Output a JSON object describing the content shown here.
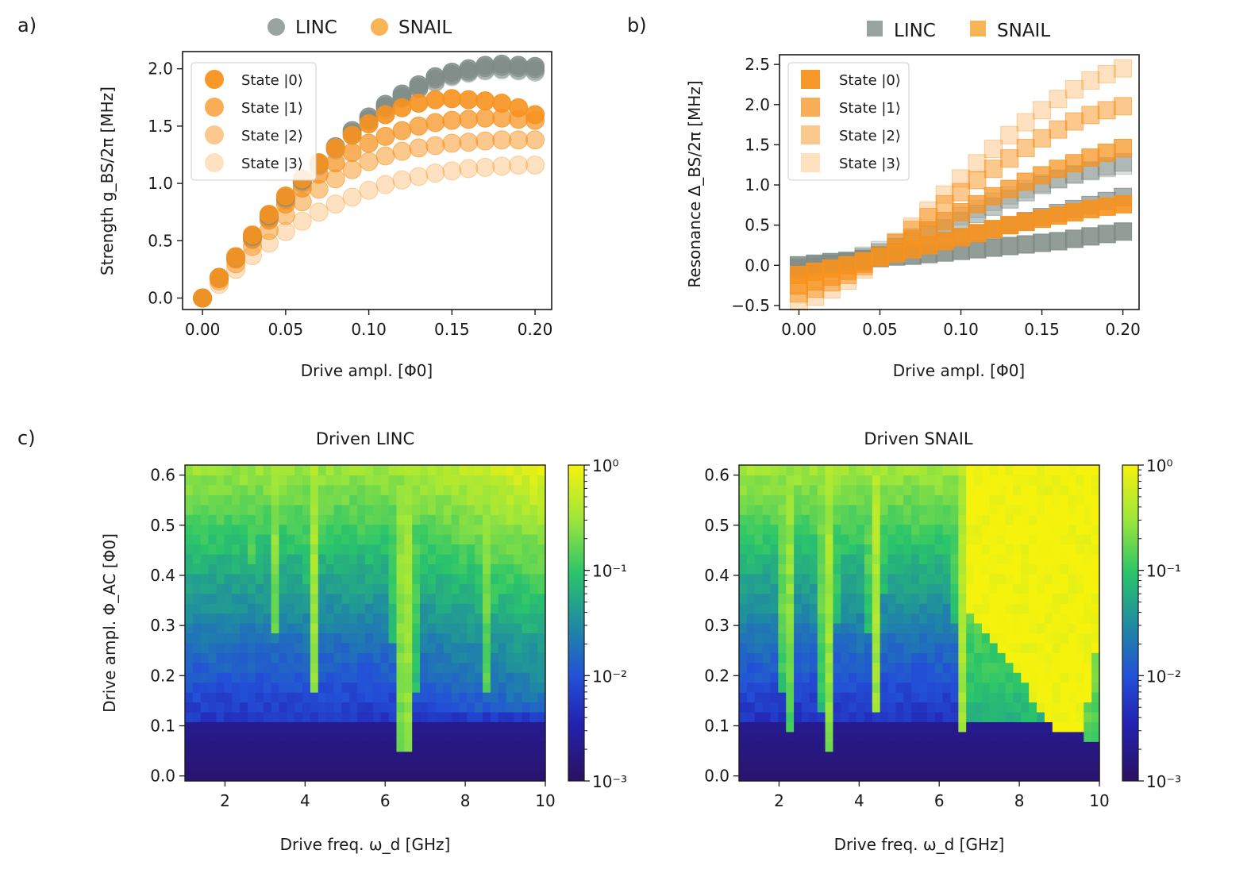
{
  "chart_data": [
    {
      "id": "a",
      "type": "scatter",
      "panel_label": "a)",
      "xlabel": "Drive ampl. [Φ0]",
      "ylabel": "Strength g_BS/2π [MHz]",
      "xlim": [
        -0.012,
        0.21
      ],
      "ylim": [
        -0.1,
        2.15
      ],
      "xticks": [
        "0.00",
        "0.05",
        "0.10",
        "0.15",
        "0.20"
      ],
      "yticks": [
        "0.0",
        "0.5",
        "1.0",
        "1.5",
        "2.0"
      ],
      "marker": "circle",
      "top_legend": [
        "LINC",
        "SNAIL"
      ],
      "inner_legend": [
        "State |0⟩",
        "State |1⟩",
        "State |2⟩",
        "State |3⟩"
      ],
      "x": [
        0,
        0.01,
        0.02,
        0.03,
        0.04,
        0.05,
        0.06,
        0.07,
        0.08,
        0.09,
        0.1,
        0.11,
        0.12,
        0.13,
        0.14,
        0.15,
        0.16,
        0.17,
        0.18,
        0.19,
        0.2
      ],
      "series": [
        {
          "name": "LINC State |0⟩",
          "device": "LINC",
          "state": 0,
          "values": [
            0,
            0.18,
            0.36,
            0.54,
            0.72,
            0.88,
            1.03,
            1.18,
            1.32,
            1.46,
            1.58,
            1.69,
            1.78,
            1.86,
            1.93,
            1.97,
            2.0,
            2.03,
            2.04,
            2.03,
            2.02
          ]
        },
        {
          "name": "LINC State |1⟩",
          "device": "LINC",
          "state": 1,
          "values": [
            0,
            0.18,
            0.35,
            0.53,
            0.71,
            0.87,
            1.02,
            1.17,
            1.31,
            1.44,
            1.56,
            1.67,
            1.76,
            1.84,
            1.91,
            1.95,
            1.98,
            2.01,
            2.02,
            2.01,
            2.0
          ]
        },
        {
          "name": "LINC State |2⟩",
          "device": "LINC",
          "state": 2,
          "values": [
            0,
            0.17,
            0.35,
            0.52,
            0.7,
            0.86,
            1.01,
            1.16,
            1.3,
            1.43,
            1.55,
            1.66,
            1.75,
            1.83,
            1.89,
            1.94,
            1.97,
            1.99,
            2.0,
            1.99,
            1.98
          ]
        },
        {
          "name": "LINC State |3⟩",
          "device": "LINC",
          "state": 3,
          "values": [
            0,
            0.17,
            0.34,
            0.52,
            0.69,
            0.85,
            1.0,
            1.15,
            1.29,
            1.42,
            1.54,
            1.64,
            1.74,
            1.82,
            1.88,
            1.93,
            1.96,
            1.98,
            1.99,
            1.98,
            1.97
          ]
        },
        {
          "name": "SNAIL State |0⟩",
          "device": "SNAIL",
          "state": 0,
          "values": [
            0,
            0.18,
            0.36,
            0.55,
            0.73,
            0.89,
            1.04,
            1.18,
            1.31,
            1.42,
            1.52,
            1.6,
            1.66,
            1.7,
            1.73,
            1.74,
            1.73,
            1.72,
            1.7,
            1.66,
            1.6
          ]
        },
        {
          "name": "SNAIL State |1⟩",
          "device": "SNAIL",
          "state": 1,
          "values": [
            0,
            0.17,
            0.34,
            0.51,
            0.68,
            0.82,
            0.96,
            1.08,
            1.18,
            1.27,
            1.35,
            1.41,
            1.46,
            1.5,
            1.53,
            1.55,
            1.56,
            1.57,
            1.57,
            1.56,
            1.55
          ]
        },
        {
          "name": "SNAIL State |2⟩",
          "device": "SNAIL",
          "state": 2,
          "values": [
            0,
            0.15,
            0.3,
            0.45,
            0.59,
            0.72,
            0.84,
            0.95,
            1.04,
            1.12,
            1.19,
            1.24,
            1.28,
            1.31,
            1.33,
            1.35,
            1.36,
            1.37,
            1.38,
            1.38,
            1.38
          ]
        },
        {
          "name": "SNAIL State |3⟩",
          "device": "SNAIL",
          "state": 3,
          "values": [
            0,
            0.12,
            0.25,
            0.37,
            0.48,
            0.58,
            0.67,
            0.75,
            0.82,
            0.88,
            0.94,
            0.99,
            1.03,
            1.06,
            1.09,
            1.11,
            1.13,
            1.14,
            1.15,
            1.16,
            1.16
          ]
        }
      ]
    },
    {
      "id": "b",
      "type": "scatter",
      "panel_label": "b)",
      "xlabel": "Drive ampl. [Φ0]",
      "ylabel": "Resonance Δ_BS/2π [MHz]",
      "xlim": [
        -0.012,
        0.21
      ],
      "ylim": [
        -0.55,
        2.62
      ],
      "xticks": [
        "0.00",
        "0.05",
        "0.10",
        "0.15",
        "0.20"
      ],
      "yticks": [
        "−0.5",
        "0.0",
        "0.5",
        "1.0",
        "1.5",
        "2.0",
        "2.5"
      ],
      "marker": "square",
      "top_legend": [
        "LINC",
        "SNAIL"
      ],
      "inner_legend": [
        "State |0⟩",
        "State |1⟩",
        "State |2⟩",
        "State |3⟩"
      ],
      "x": [
        0,
        0.01,
        0.02,
        0.03,
        0.04,
        0.05,
        0.06,
        0.07,
        0.08,
        0.09,
        0.1,
        0.11,
        0.12,
        0.13,
        0.14,
        0.15,
        0.16,
        0.17,
        0.18,
        0.19,
        0.2
      ],
      "series": [
        {
          "name": "LINC State |0⟩",
          "device": "LINC",
          "state": 0,
          "values": [
            0.0,
            0.02,
            0.04,
            0.05,
            0.07,
            0.09,
            0.11,
            0.12,
            0.14,
            0.16,
            0.18,
            0.2,
            0.22,
            0.24,
            0.26,
            0.28,
            0.3,
            0.33,
            0.36,
            0.39,
            0.42
          ]
        },
        {
          "name": "LINC State |1⟩",
          "device": "LINC",
          "state": 1,
          "values": [
            -0.03,
            0.0,
            0.02,
            0.05,
            0.08,
            0.12,
            0.16,
            0.2,
            0.25,
            0.3,
            0.35,
            0.4,
            0.45,
            0.5,
            0.55,
            0.6,
            0.65,
            0.7,
            0.75,
            0.8,
            0.85
          ]
        },
        {
          "name": "LINC State |2⟩",
          "device": "LINC",
          "state": 2,
          "values": [
            -0.05,
            -0.02,
            0.01,
            0.05,
            0.1,
            0.16,
            0.23,
            0.3,
            0.38,
            0.46,
            0.55,
            0.64,
            0.73,
            0.82,
            0.91,
            1.0,
            1.07,
            1.13,
            1.18,
            1.23,
            1.28
          ]
        },
        {
          "name": "LINC State |3⟩",
          "device": "LINC",
          "state": 3,
          "values": [
            -0.05,
            -0.02,
            0.02,
            0.06,
            0.12,
            0.19,
            0.27,
            0.35,
            0.43,
            0.52,
            0.61,
            0.7,
            0.79,
            0.87,
            0.95,
            1.02,
            1.08,
            1.13,
            1.17,
            1.21,
            1.24
          ]
        },
        {
          "name": "SNAIL State |0⟩",
          "device": "SNAIL",
          "state": 0,
          "values": [
            -0.12,
            -0.08,
            -0.04,
            0.0,
            0.05,
            0.1,
            0.15,
            0.2,
            0.25,
            0.3,
            0.35,
            0.4,
            0.45,
            0.5,
            0.54,
            0.58,
            0.62,
            0.66,
            0.7,
            0.73,
            0.76
          ]
        },
        {
          "name": "SNAIL State |1⟩",
          "device": "SNAIL",
          "state": 1,
          "values": [
            -0.25,
            -0.2,
            -0.14,
            -0.07,
            0.02,
            0.11,
            0.22,
            0.33,
            0.44,
            0.55,
            0.66,
            0.76,
            0.86,
            0.95,
            1.04,
            1.12,
            1.2,
            1.27,
            1.34,
            1.4,
            1.46
          ]
        },
        {
          "name": "SNAIL State |2⟩",
          "device": "SNAIL",
          "state": 2,
          "values": [
            -0.35,
            -0.29,
            -0.21,
            -0.12,
            -0.01,
            0.13,
            0.28,
            0.44,
            0.6,
            0.76,
            0.91,
            1.06,
            1.2,
            1.33,
            1.46,
            1.58,
            1.69,
            1.79,
            1.87,
            1.93,
            1.98
          ]
        },
        {
          "name": "SNAIL State |3⟩",
          "device": "SNAIL",
          "state": 3,
          "values": [
            -0.45,
            -0.39,
            -0.3,
            -0.19,
            -0.05,
            0.11,
            0.29,
            0.48,
            0.68,
            0.88,
            1.08,
            1.27,
            1.45,
            1.62,
            1.78,
            1.93,
            2.07,
            2.19,
            2.3,
            2.38,
            2.45
          ]
        }
      ]
    },
    {
      "id": "c-linc",
      "type": "heatmap",
      "panel_label": "c)",
      "title": "Driven LINC",
      "xlabel": "Drive freq. ω_d [GHz]",
      "ylabel": "Drive ampl. Φ_AC [Φ0]",
      "xlim": [
        1.0,
        10.0
      ],
      "ylim": [
        -0.01,
        0.62
      ],
      "xticks": [
        "2",
        "4",
        "6",
        "8",
        "10"
      ],
      "yticks": [
        "0.0",
        "0.1",
        "0.2",
        "0.3",
        "0.4",
        "0.5",
        "0.6"
      ],
      "colorbar": {
        "scale": "log",
        "range": [
          0.001,
          1
        ],
        "ticks": [
          "10⁻³",
          "10⁻²",
          "10⁻¹",
          "10⁰"
        ]
      },
      "resonances_GHz": [
        {
          "f": 6.5,
          "w": 0.22,
          "onset": 0.05
        },
        {
          "f": 4.2,
          "w": 0.07,
          "onset": 0.16
        },
        {
          "f": 3.2,
          "w": 0.06,
          "onset": 0.28
        },
        {
          "f": 1.8,
          "w": 0.05,
          "onset": 0.45
        },
        {
          "f": 2.6,
          "w": 0.05,
          "onset": 0.42
        },
        {
          "f": 8.6,
          "w": 0.06,
          "onset": 0.17
        },
        {
          "f": 8.4,
          "w": 0.05,
          "onset": 0.45
        }
      ]
    },
    {
      "id": "c-snail",
      "type": "heatmap",
      "title": "Driven SNAIL",
      "xlabel": "Drive freq. ω_d [GHz]",
      "ylabel": "",
      "xlim": [
        1.0,
        10.0
      ],
      "ylim": [
        -0.01,
        0.62
      ],
      "xticks": [
        "2",
        "4",
        "6",
        "8",
        "10"
      ],
      "yticks": [
        "0.0",
        "0.1",
        "0.2",
        "0.3",
        "0.4",
        "0.5",
        "0.6"
      ],
      "colorbar": {
        "scale": "log",
        "range": [
          0.001,
          1
        ],
        "ticks": [
          "10⁻³",
          "10⁻²",
          "10⁻¹",
          "10⁰"
        ]
      },
      "saturated_region_GHz": [
        6.6,
        10.0
      ],
      "resonances_GHz": [
        {
          "f": 2.2,
          "w": 0.08,
          "onset": 0.09
        },
        {
          "f": 3.2,
          "w": 0.1,
          "onset": 0.05
        },
        {
          "f": 4.4,
          "w": 0.08,
          "onset": 0.12
        },
        {
          "f": 6.6,
          "w": 0.1,
          "onset": 0.08
        },
        {
          "f": 9.8,
          "w": 0.12,
          "onset": 0.06
        }
      ]
    }
  ]
}
